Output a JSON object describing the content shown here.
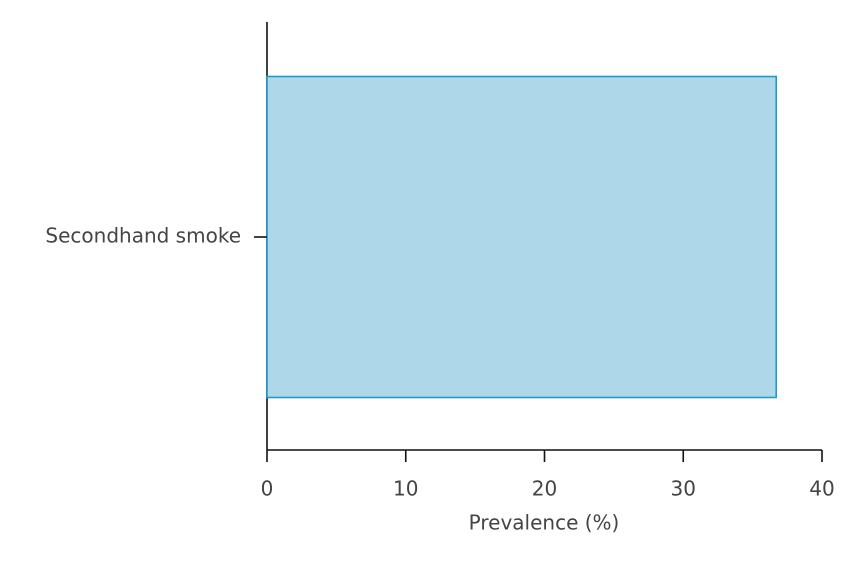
{
  "chart_data": {
    "type": "barh",
    "categories": [
      "Secondhand smoke"
    ],
    "values": [
      36.7
    ],
    "color": "#aed8ea",
    "edge_color": "#1f9bc8",
    "xlabel": "Prevalence (%)",
    "xlim": [
      0,
      40
    ],
    "xticks": [
      0,
      10,
      20,
      30,
      40
    ]
  }
}
